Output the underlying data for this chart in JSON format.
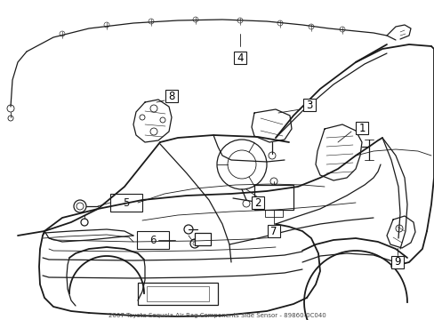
{
  "background_color": "#ffffff",
  "line_color": "#1a1a1a",
  "label_color": "#000000",
  "fig_width": 4.89,
  "fig_height": 3.6,
  "dpi": 100,
  "lw_main": 1.3,
  "lw_med": 0.9,
  "lw_thin": 0.6,
  "lw_hair": 0.4,
  "label_fontsize": 8.5,
  "caption": "2007 Toyota Sequoia Air Bag Components Side Sensor - 89860-0C040",
  "caption_fontsize": 5.0,
  "caption_color": "#444444"
}
